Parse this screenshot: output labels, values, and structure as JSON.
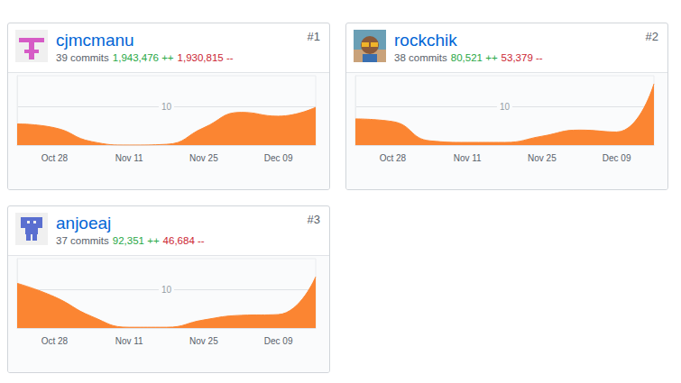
{
  "chart_data": [
    {
      "type": "area",
      "title": "cjmcmanu",
      "rank": "#1",
      "commits": "39 commits",
      "additions": "1,943,476 ++",
      "deletions": "1,930,815 --",
      "categories": [
        null,
        "Oct 28",
        null,
        "Nov 11",
        null,
        "Nov 25",
        null,
        "Dec 09",
        null
      ],
      "values": [
        5.5,
        4.5,
        0.9,
        0,
        0.2,
        4.5,
        8.5,
        7.5,
        9.8
      ],
      "color": "#fb8532",
      "ylim": [
        0,
        18
      ],
      "yticks": [
        10
      ],
      "grid": true
    },
    {
      "type": "area",
      "title": "rockchik",
      "rank": "#2",
      "commits": "38 commits",
      "additions": "80,521 ++",
      "deletions": "53,379 --",
      "categories": [
        null,
        "Oct 28",
        null,
        "Nov 11",
        null,
        "Nov 25",
        null,
        "Dec 09",
        null
      ],
      "values": [
        6.8,
        6.1,
        1.1,
        0.7,
        0.7,
        2.3,
        3.9,
        3.4,
        15.9
      ],
      "color": "#fb8532",
      "ylim": [
        0,
        18
      ],
      "yticks": [
        10
      ],
      "grid": true
    },
    {
      "type": "area",
      "title": "anjoeaj",
      "rank": "#3",
      "commits": "37 commits",
      "additions": "92,351 ++",
      "deletions": "46,684 --",
      "categories": [
        null,
        "Oct 28",
        null,
        "Nov 11",
        null,
        "Nov 25",
        null,
        "Dec 09",
        null
      ],
      "values": [
        11.6,
        8.1,
        3.0,
        0.2,
        0.2,
        2.1,
        3.3,
        3.5,
        13.3
      ],
      "color": "#fb8532",
      "ylim": [
        0,
        18
      ],
      "yticks": [
        10
      ],
      "grid": true
    }
  ]
}
